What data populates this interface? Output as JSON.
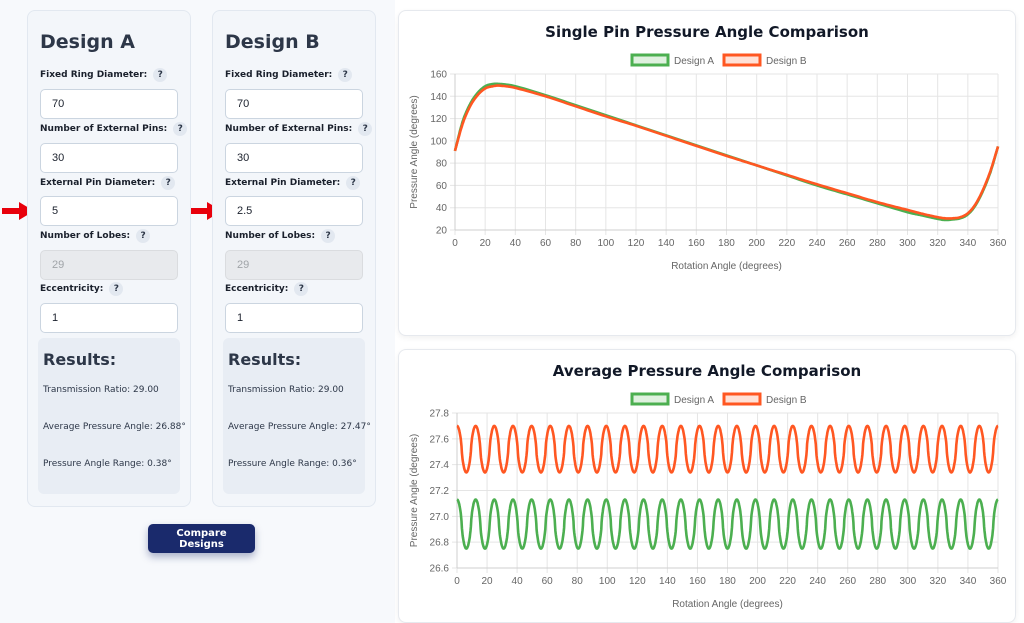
{
  "designA": {
    "title": "Design A",
    "fields": [
      {
        "label": "Fixed Ring Diameter:",
        "value": "70",
        "disabled": false
      },
      {
        "label": "Number of External Pins:",
        "value": "30",
        "disabled": false
      },
      {
        "label": "External Pin Diameter:",
        "value": "5",
        "disabled": false
      },
      {
        "label": "Number of Lobes:",
        "value": "29",
        "disabled": true
      },
      {
        "label": "Eccentricity:",
        "value": "1",
        "disabled": false
      }
    ],
    "results": {
      "title": "Results:",
      "transmission": "Transmission Ratio: 29.00",
      "average": "Average Pressure Angle: 26.88°",
      "range": "Pressure Angle Range: 0.38°"
    }
  },
  "designB": {
    "title": "Design B",
    "fields": [
      {
        "label": "Fixed Ring Diameter:",
        "value": "70",
        "disabled": false
      },
      {
        "label": "Number of External Pins:",
        "value": "30",
        "disabled": false
      },
      {
        "label": "External Pin Diameter:",
        "value": "2.5",
        "disabled": false
      },
      {
        "label": "Number of Lobes:",
        "value": "29",
        "disabled": true
      },
      {
        "label": "Eccentricity:",
        "value": "1",
        "disabled": false
      }
    ],
    "results": {
      "title": "Results:",
      "transmission": "Transmission Ratio: 29.00",
      "average": "Average Pressure Angle: 27.47°",
      "range": "Pressure Angle Range: 0.36°"
    }
  },
  "help_glyph": "?",
  "compare_label": "Compare Designs",
  "icons": {
    "arrow": "red-arrow-icon",
    "help": "question-icon"
  },
  "colors": {
    "designA": "#4caf50",
    "designB": "#ff5722",
    "button": "#1a2a6c",
    "arrow": "#e8000b"
  },
  "chart_data": [
    {
      "type": "line",
      "title": "Single Pin Pressure Angle Comparison",
      "xlabel": "Rotation Angle (degrees)",
      "ylabel": "Pressure Angle (degrees)",
      "xlim": [
        0,
        360
      ],
      "ylim": [
        20,
        160
      ],
      "xticks": [
        0,
        20,
        40,
        60,
        80,
        100,
        120,
        140,
        160,
        180,
        200,
        220,
        240,
        260,
        280,
        300,
        320,
        340,
        360
      ],
      "yticks": [
        20,
        40,
        60,
        80,
        100,
        120,
        140,
        160
      ],
      "grid": true,
      "legend": "top-center",
      "series": [
        {
          "name": "Design A",
          "color": "#4caf50",
          "x": [
            0,
            5,
            10,
            15,
            20,
            25,
            30,
            40,
            60,
            80,
            100,
            120,
            140,
            160,
            180,
            200,
            220,
            240,
            260,
            280,
            300,
            310,
            320,
            325,
            330,
            335,
            340,
            345,
            350,
            355,
            360
          ],
          "y": [
            91,
            117,
            133,
            143,
            149,
            151,
            151,
            149,
            141,
            132,
            123,
            114,
            105,
            96,
            87,
            78,
            69,
            60,
            52,
            44,
            36,
            33,
            30,
            29,
            29.5,
            30.5,
            34,
            42,
            55,
            72,
            95
          ]
        },
        {
          "name": "Design B",
          "color": "#ff5722",
          "x": [
            0,
            5,
            10,
            15,
            20,
            25,
            30,
            40,
            60,
            80,
            100,
            120,
            140,
            160,
            180,
            200,
            220,
            240,
            260,
            280,
            300,
            310,
            320,
            325,
            330,
            335,
            340,
            345,
            350,
            355,
            360
          ],
          "y": [
            91,
            115,
            131,
            141,
            147,
            149,
            149.5,
            147.5,
            140,
            131,
            122,
            113.5,
            104.5,
            95.5,
            86.5,
            78,
            69.5,
            61,
            53,
            45,
            38,
            34.5,
            31.5,
            30.5,
            30.5,
            31.5,
            35,
            43,
            56,
            73,
            95
          ]
        }
      ]
    },
    {
      "type": "line",
      "title": "Average Pressure Angle Comparison",
      "xlabel": "Rotation Angle (degrees)",
      "ylabel": "Pressure Angle (degrees)",
      "xlim": [
        0,
        360
      ],
      "ylim": [
        26.6,
        27.8
      ],
      "xticks": [
        0,
        20,
        40,
        60,
        80,
        100,
        120,
        140,
        160,
        180,
        200,
        220,
        240,
        260,
        280,
        300,
        320,
        340,
        360
      ],
      "yticks": [
        26.6,
        26.8,
        27.0,
        27.2,
        27.4,
        27.6,
        27.8
      ],
      "grid": true,
      "legend": "top-center",
      "oscillation_cycles": 29,
      "series": [
        {
          "name": "Design A",
          "color": "#4caf50",
          "min": 26.75,
          "max": 27.13
        },
        {
          "name": "Design B",
          "color": "#ff5722",
          "min": 27.34,
          "max": 27.7
        }
      ]
    }
  ]
}
